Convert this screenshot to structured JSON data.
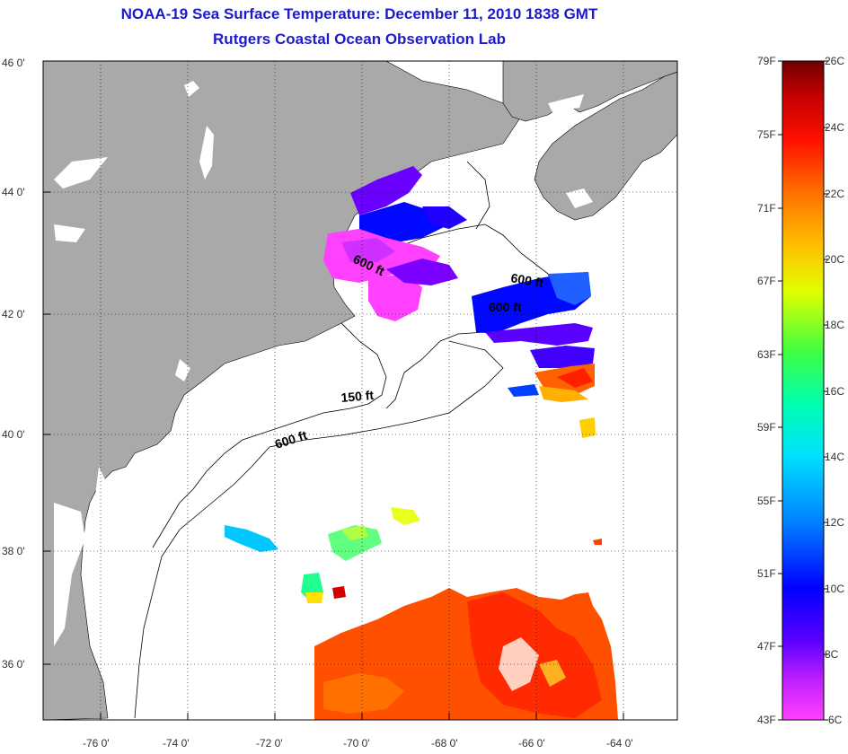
{
  "header": {
    "title": "NOAA-19 Sea Surface Temperature:  December 11, 2010 1838 GMT",
    "subtitle": "Rutgers Coastal Ocean Observation Lab"
  },
  "axes": {
    "lat_labels": [
      "46 0'",
      "44 0'",
      "42 0'",
      "40 0'",
      "38 0'",
      "36 0'"
    ],
    "lon_labels": [
      "-76 0'",
      "-74 0'",
      "-72 0'",
      "-70 0'",
      "-68 0'",
      "-66 0'",
      "-64 0'"
    ]
  },
  "contours": {
    "label_600_north": "600 ft",
    "label_600_gb1": "600 ft",
    "label_600_gb2": "600 ft",
    "label_150": "150 ft",
    "label_600_south": "600 ft"
  },
  "colorbar": {
    "fahrenheit": [
      "79F",
      "75F",
      "71F",
      "67F",
      "63F",
      "59F",
      "55F",
      "51F",
      "47F",
      "43F"
    ],
    "celsius": [
      "26C",
      "24C",
      "22C",
      "20C",
      "18C",
      "16C",
      "14C",
      "12C",
      "10C",
      "8C",
      "6C"
    ],
    "colors": [
      "#ff40ff",
      "#7b00ff",
      "#0000ff",
      "#00a0ff",
      "#00ffff",
      "#00ff60",
      "#ffff00",
      "#ff9000",
      "#ff1000",
      "#7a0000"
    ]
  },
  "colors": {
    "land": "#a9a9a9",
    "title": "#1c1ccc"
  }
}
